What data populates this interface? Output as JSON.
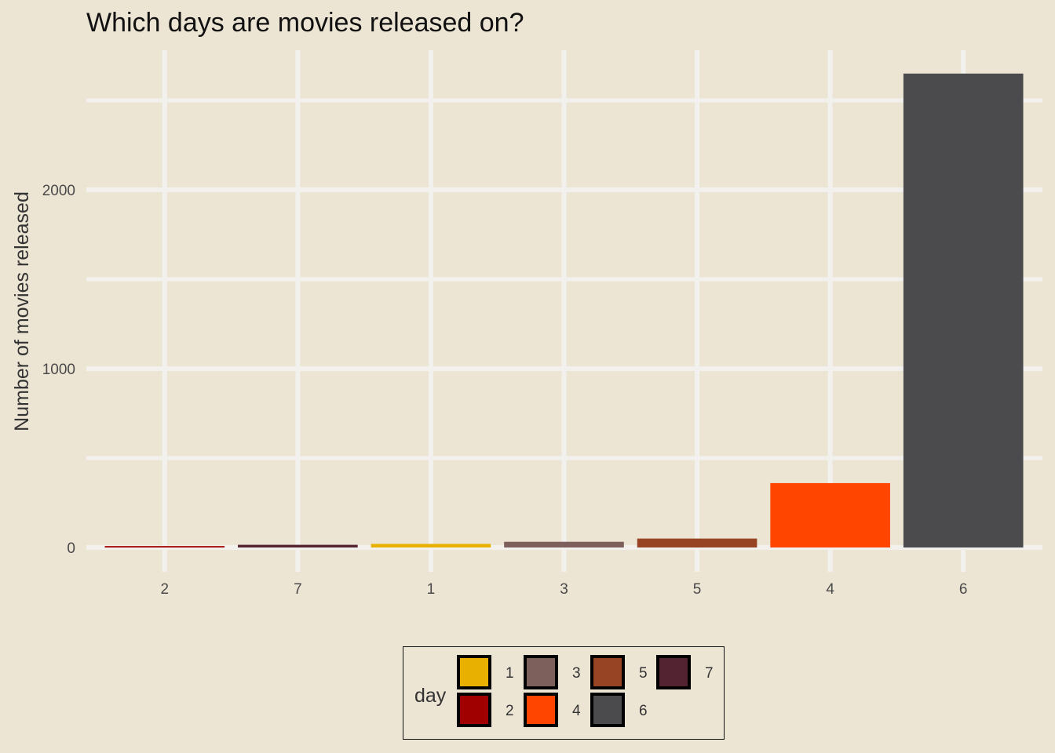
{
  "chart_data": {
    "type": "bar",
    "title": "Which days are movies released on?",
    "xlabel": "",
    "ylabel": "Number of movies released",
    "categories": [
      "2",
      "7",
      "1",
      "3",
      "5",
      "4",
      "6"
    ],
    "values": [
      8,
      15,
      20,
      32,
      50,
      360,
      2650
    ],
    "ylim": [
      0,
      2780
    ],
    "yticks": [
      0,
      1000,
      2000
    ],
    "yticks_labels": [
      "0",
      "1000",
      "2000"
    ],
    "grid": true,
    "legend": {
      "title": "day",
      "placement": "bottom",
      "entries": [
        {
          "label": "1",
          "color": "#E8B000"
        },
        {
          "label": "2",
          "color": "#A00000"
        },
        {
          "label": "3",
          "color": "#7D5F5B"
        },
        {
          "label": "4",
          "color": "#FF4500"
        },
        {
          "label": "5",
          "color": "#964424"
        },
        {
          "label": "6",
          "color": "#4B4B4D"
        },
        {
          "label": "7",
          "color": "#532331"
        }
      ]
    },
    "colors": {
      "2": "#A00000",
      "7": "#532331",
      "1": "#E8B000",
      "3": "#7D5F5B",
      "5": "#964424",
      "4": "#FF4500",
      "6": "#4B4B4D"
    },
    "background": "#EDE5D4",
    "gridline_color": "#F2F1EE"
  }
}
